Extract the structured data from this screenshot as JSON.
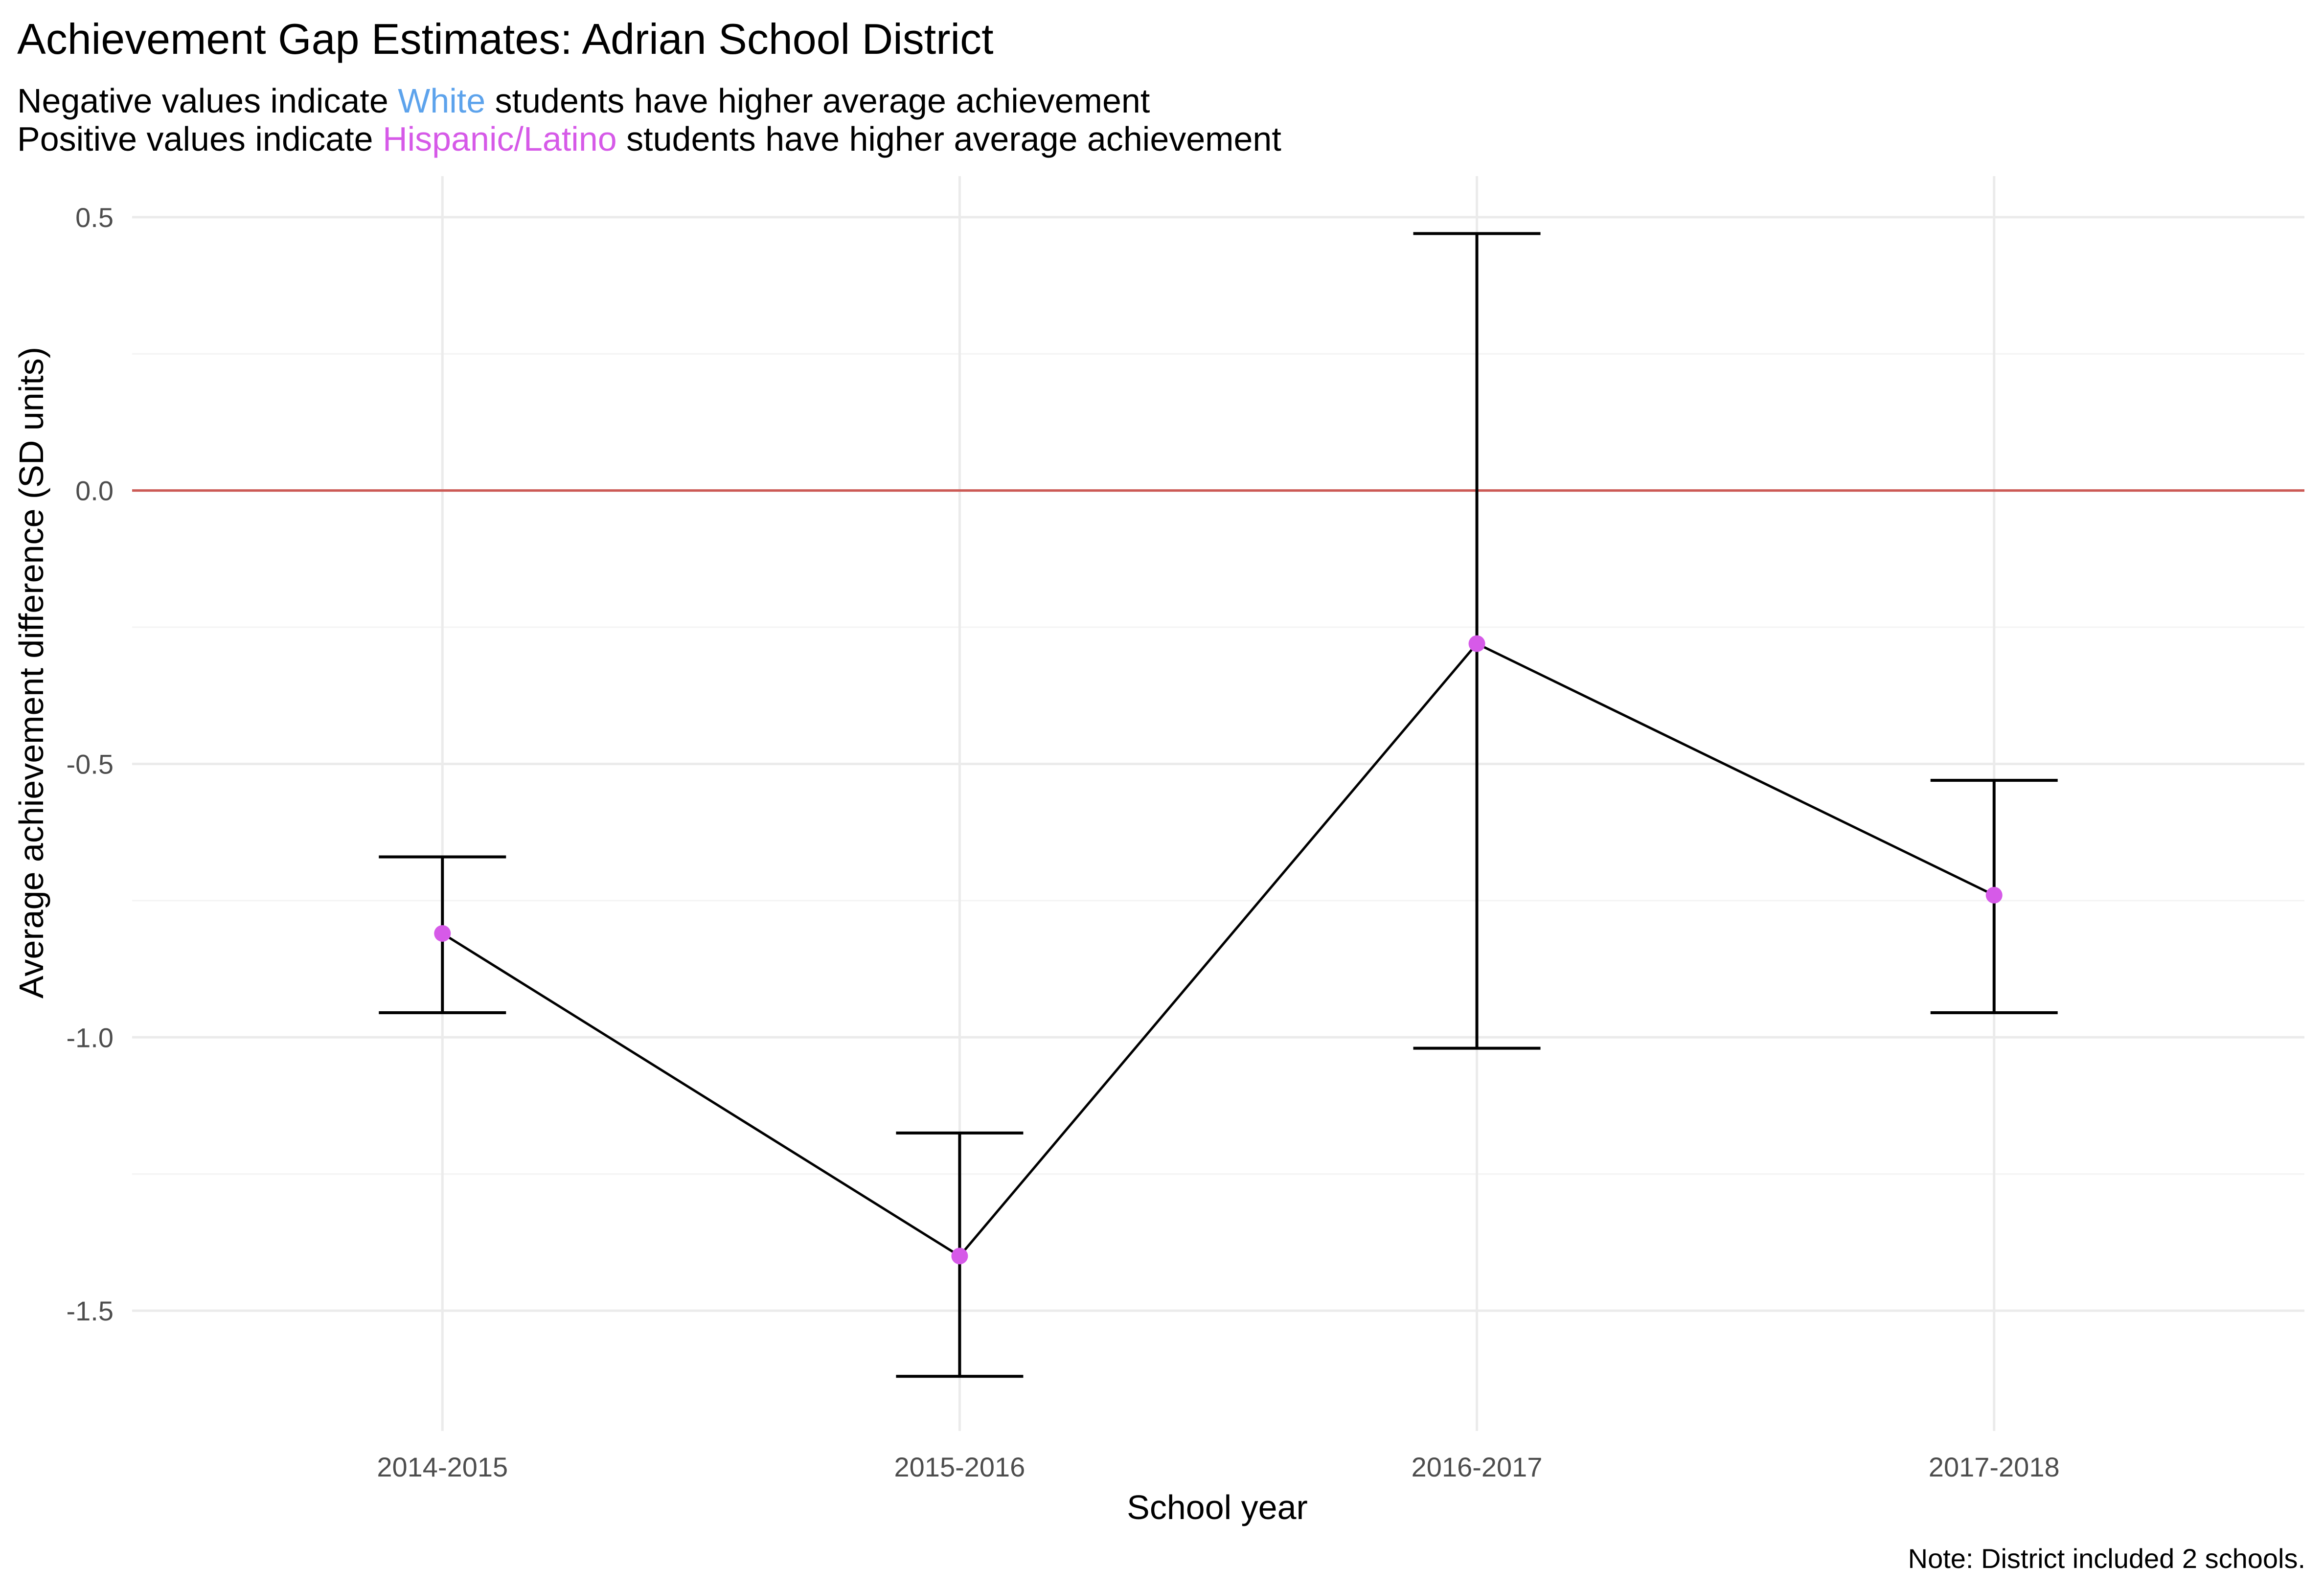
{
  "chart_data": {
    "type": "line",
    "title": "Achievement Gap Estimates: Adrian School District",
    "subtitle_lines": [
      {
        "before": "Negative values indicate ",
        "highlight": "White",
        "after": " students have higher average achievement",
        "highlight_color": "#5da3ec"
      },
      {
        "before": "Positive values indicate ",
        "highlight": "Hispanic/Latino",
        "after": " students have higher average achievement",
        "highlight_color": "#d65ae8"
      }
    ],
    "xlabel": "School year",
    "ylabel": "Average achievement difference (SD units)",
    "caption": "Note: District included 2 schools.",
    "categories": [
      "2014-2015",
      "2015-2016",
      "2016-2017",
      "2017-2018"
    ],
    "values": [
      -0.81,
      -1.4,
      -0.28,
      -0.74
    ],
    "error_low": [
      -0.955,
      -1.62,
      -1.02,
      -0.955
    ],
    "error_high": [
      -0.67,
      -1.175,
      0.47,
      -0.53
    ],
    "ylim": [
      -1.72,
      0.575
    ],
    "yticks": [
      0.5,
      0.0,
      -0.5,
      -1.0,
      -1.5
    ],
    "ytick_labels": [
      "0.5",
      "0.0",
      "-0.5",
      "-1.0",
      "-1.5"
    ],
    "reference_line": 0,
    "colors": {
      "point": "#d65ae8",
      "line": "#000000",
      "reference": "#cc5a55",
      "grid_major": "#ebebeb",
      "grid_minor": "#f4f4f4"
    }
  }
}
